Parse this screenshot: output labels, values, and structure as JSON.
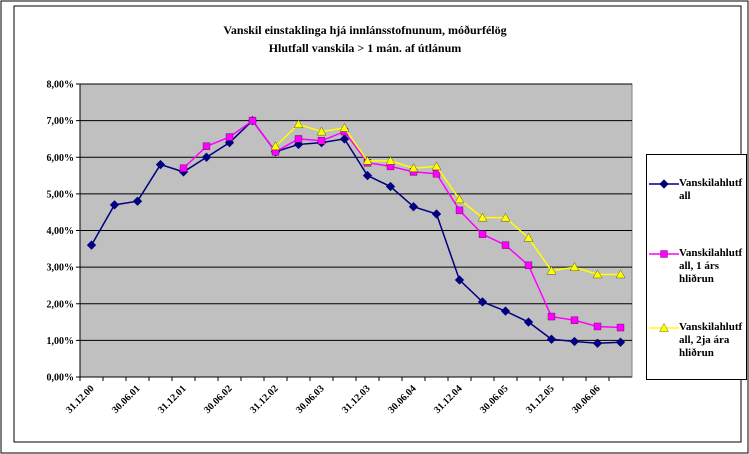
{
  "chart_data": {
    "type": "line",
    "title": "Vanskil einstaklinga hjá innlánsstofnunum, móðurfélög",
    "subtitle": "Hlutfall vanskila > 1 mán. af útlánum",
    "categories": [
      "31.12.00",
      null,
      "30.06.01",
      null,
      "31.12.01",
      null,
      "30.06.02",
      null,
      "31.12.02",
      null,
      "30.06.03",
      null,
      "31.12.03",
      null,
      "30.06.04",
      null,
      "31.12.04",
      null,
      "30.06.05",
      null,
      "31.12.05",
      null,
      "30.06.06",
      null
    ],
    "series": [
      {
        "name": "Vanskilahlutfall",
        "color": "#000080",
        "marker": "diamond",
        "values": [
          3.6,
          4.7,
          4.8,
          5.8,
          5.6,
          6.0,
          6.4,
          7.0,
          6.15,
          6.35,
          6.4,
          6.5,
          5.5,
          5.2,
          4.65,
          4.45,
          2.65,
          2.05,
          1.8,
          1.5,
          1.03,
          0.97,
          0.92,
          0.95
        ]
      },
      {
        "name": "Vanskilahlutfall, 1 árs hliðrun",
        "color": "#ff00ff",
        "marker": "square",
        "values": [
          null,
          null,
          null,
          null,
          5.7,
          6.3,
          6.55,
          7.0,
          6.15,
          6.5,
          6.45,
          6.7,
          5.85,
          5.75,
          5.6,
          5.55,
          4.55,
          3.9,
          3.6,
          3.05,
          1.65,
          1.55,
          1.38,
          1.35
        ]
      },
      {
        "name": "Vanskilahlutfall, 2ja ára hliðrun",
        "color": "#ffff00",
        "marker": "triangle",
        "values": [
          null,
          null,
          null,
          null,
          null,
          null,
          null,
          null,
          6.3,
          6.9,
          6.7,
          6.8,
          5.9,
          5.9,
          5.7,
          5.75,
          4.85,
          4.35,
          4.35,
          3.8,
          2.9,
          3.0,
          2.8,
          2.8
        ]
      }
    ],
    "ylim": [
      0,
      8
    ],
    "yticks": [
      {
        "value": 0,
        "label": "0,00%"
      },
      {
        "value": 1,
        "label": "1,00%"
      },
      {
        "value": 2,
        "label": "2,00%"
      },
      {
        "value": 3,
        "label": "3,00%"
      },
      {
        "value": 4,
        "label": "4,00%"
      },
      {
        "value": 5,
        "label": "5,00%"
      },
      {
        "value": 6,
        "label": "6,00%"
      },
      {
        "value": 7,
        "label": "7,00%"
      },
      {
        "value": 8,
        "label": "8,00%"
      }
    ],
    "grid": true,
    "legend": "right"
  }
}
